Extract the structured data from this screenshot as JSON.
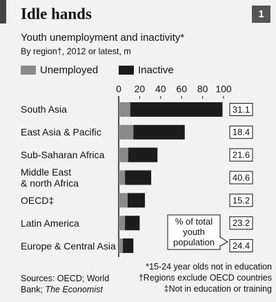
{
  "chart_data": {
    "type": "bar",
    "orientation": "horizontal",
    "stacked": true,
    "badge": "1",
    "title": "Idle hands",
    "subtitle": "Youth unemployment and inactivity*",
    "unit_note": "By region†, 2012 or latest, m",
    "categories": [
      "South Asia",
      "East Asia & Pacific",
      "Sub-Saharan Africa",
      "Middle East & north Africa",
      "OECD‡",
      "Latin America",
      "Europe & Central Asia"
    ],
    "series": [
      {
        "name": "Unemployed",
        "color": "#8a8a8a",
        "values": [
          11,
          14,
          9,
          6,
          8.5,
          6,
          4
        ]
      },
      {
        "name": "Inactive",
        "color": "#1c1c1c",
        "values": [
          88,
          49,
          28,
          25,
          16.5,
          14,
          10
        ]
      }
    ],
    "xlim": [
      0,
      100
    ],
    "xticks": [
      0,
      20,
      40,
      60,
      80,
      100
    ],
    "share_of_youth": {
      "label": "% of total youth population",
      "values": [
        31.1,
        18.4,
        21.6,
        40.6,
        15.2,
        23.2,
        24.4
      ]
    },
    "source": "Sources: OECD; World Bank;",
    "source_italic": "The Economist",
    "footnotes": [
      "*15-24 year olds not in education",
      "†Regions exclude OECD countries",
      "‡Not in education or training"
    ]
  }
}
